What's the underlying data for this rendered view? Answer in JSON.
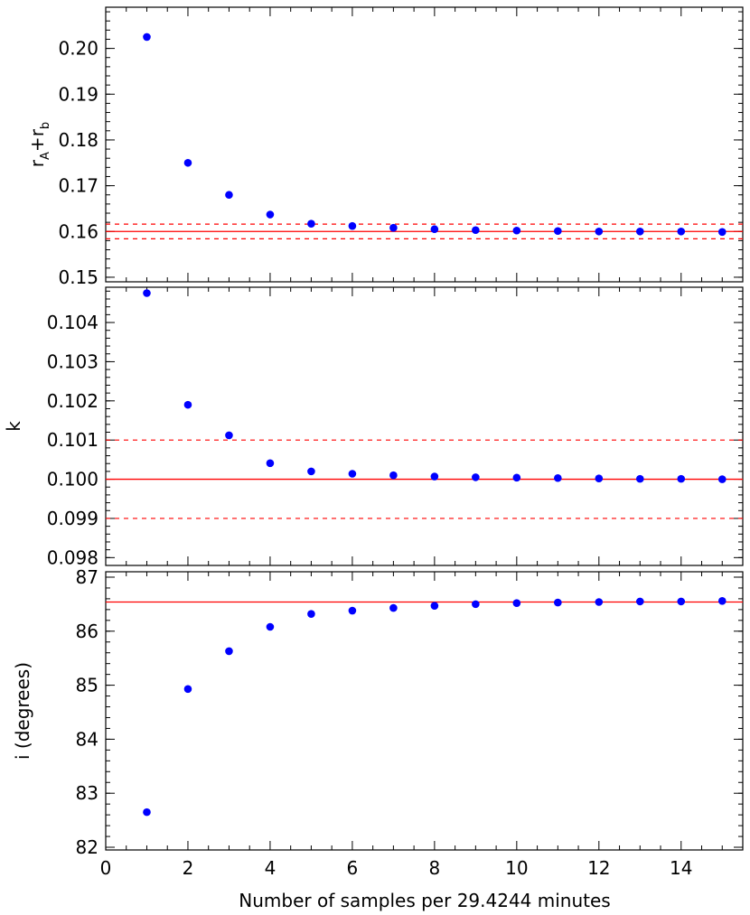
{
  "chart_data": [
    {
      "type": "scatter",
      "ylabel": "rA+rb",
      "ylabel_parts": {
        "base1": "r",
        "sub1": "A",
        "plus": "+",
        "base2": "r",
        "sub2": "b"
      },
      "xlim": [
        0,
        15.5
      ],
      "ylim": [
        0.149,
        0.209
      ],
      "yticks": [
        0.15,
        0.16,
        0.17,
        0.18,
        0.19,
        0.2
      ],
      "ytick_labels": [
        "0.15",
        "0.16",
        "0.17",
        "0.18",
        "0.19",
        "0.20"
      ],
      "yminor_step": 0.002,
      "x": [
        1,
        2,
        3,
        4,
        5,
        6,
        7,
        8,
        9,
        10,
        11,
        12,
        13,
        14,
        15
      ],
      "y": [
        0.2025,
        0.175,
        0.168,
        0.1637,
        0.1617,
        0.1612,
        0.1608,
        0.1605,
        0.1603,
        0.1602,
        0.1601,
        0.16,
        0.16,
        0.16,
        0.1599
      ],
      "reference_line": 0.16,
      "reference_band": [
        0.1584,
        0.1616
      ],
      "marker_color": "#0000ff",
      "line_color": "#ff0000"
    },
    {
      "type": "scatter",
      "ylabel": "k",
      "xlim": [
        0,
        15.5
      ],
      "ylim": [
        0.0978,
        0.1049
      ],
      "yticks": [
        0.098,
        0.099,
        0.1,
        0.101,
        0.102,
        0.103,
        0.104
      ],
      "ytick_labels": [
        "0.098",
        "0.099",
        "0.100",
        "0.101",
        "0.102",
        "0.103",
        "0.104"
      ],
      "yminor_step": 0.0002,
      "x": [
        1,
        2,
        3,
        4,
        5,
        6,
        7,
        8,
        9,
        10,
        11,
        12,
        13,
        14,
        15
      ],
      "y": [
        0.10475,
        0.1019,
        0.10112,
        0.10041,
        0.1002,
        0.10014,
        0.1001,
        0.10007,
        0.10005,
        0.10004,
        0.10003,
        0.10002,
        0.10001,
        0.10001,
        0.1
      ],
      "reference_line": 0.1,
      "reference_band": [
        0.099,
        0.101
      ],
      "marker_color": "#0000ff",
      "line_color": "#ff0000"
    },
    {
      "type": "scatter",
      "ylabel": "i (degrees)",
      "xlabel": "Number of samples per 29.4244 minutes",
      "xlim": [
        0,
        15.5
      ],
      "ylim": [
        81.95,
        87.1
      ],
      "yticks": [
        82,
        83,
        84,
        85,
        86,
        87
      ],
      "ytick_labels": [
        "82",
        "83",
        "84",
        "85",
        "86",
        "87"
      ],
      "yminor_step": 0.2,
      "xticks": [
        0,
        2,
        4,
        6,
        8,
        10,
        12,
        14
      ],
      "xtick_labels": [
        "0",
        "2",
        "4",
        "6",
        "8",
        "10",
        "12",
        "14"
      ],
      "x": [
        1,
        2,
        3,
        4,
        5,
        6,
        7,
        8,
        9,
        10,
        11,
        12,
        13,
        14,
        15
      ],
      "y": [
        82.65,
        84.93,
        85.63,
        86.08,
        86.32,
        86.38,
        86.43,
        86.47,
        86.5,
        86.52,
        86.53,
        86.54,
        86.55,
        86.55,
        86.56
      ],
      "reference_line": 86.54,
      "marker_color": "#0000ff",
      "line_color": "#ff0000"
    }
  ]
}
